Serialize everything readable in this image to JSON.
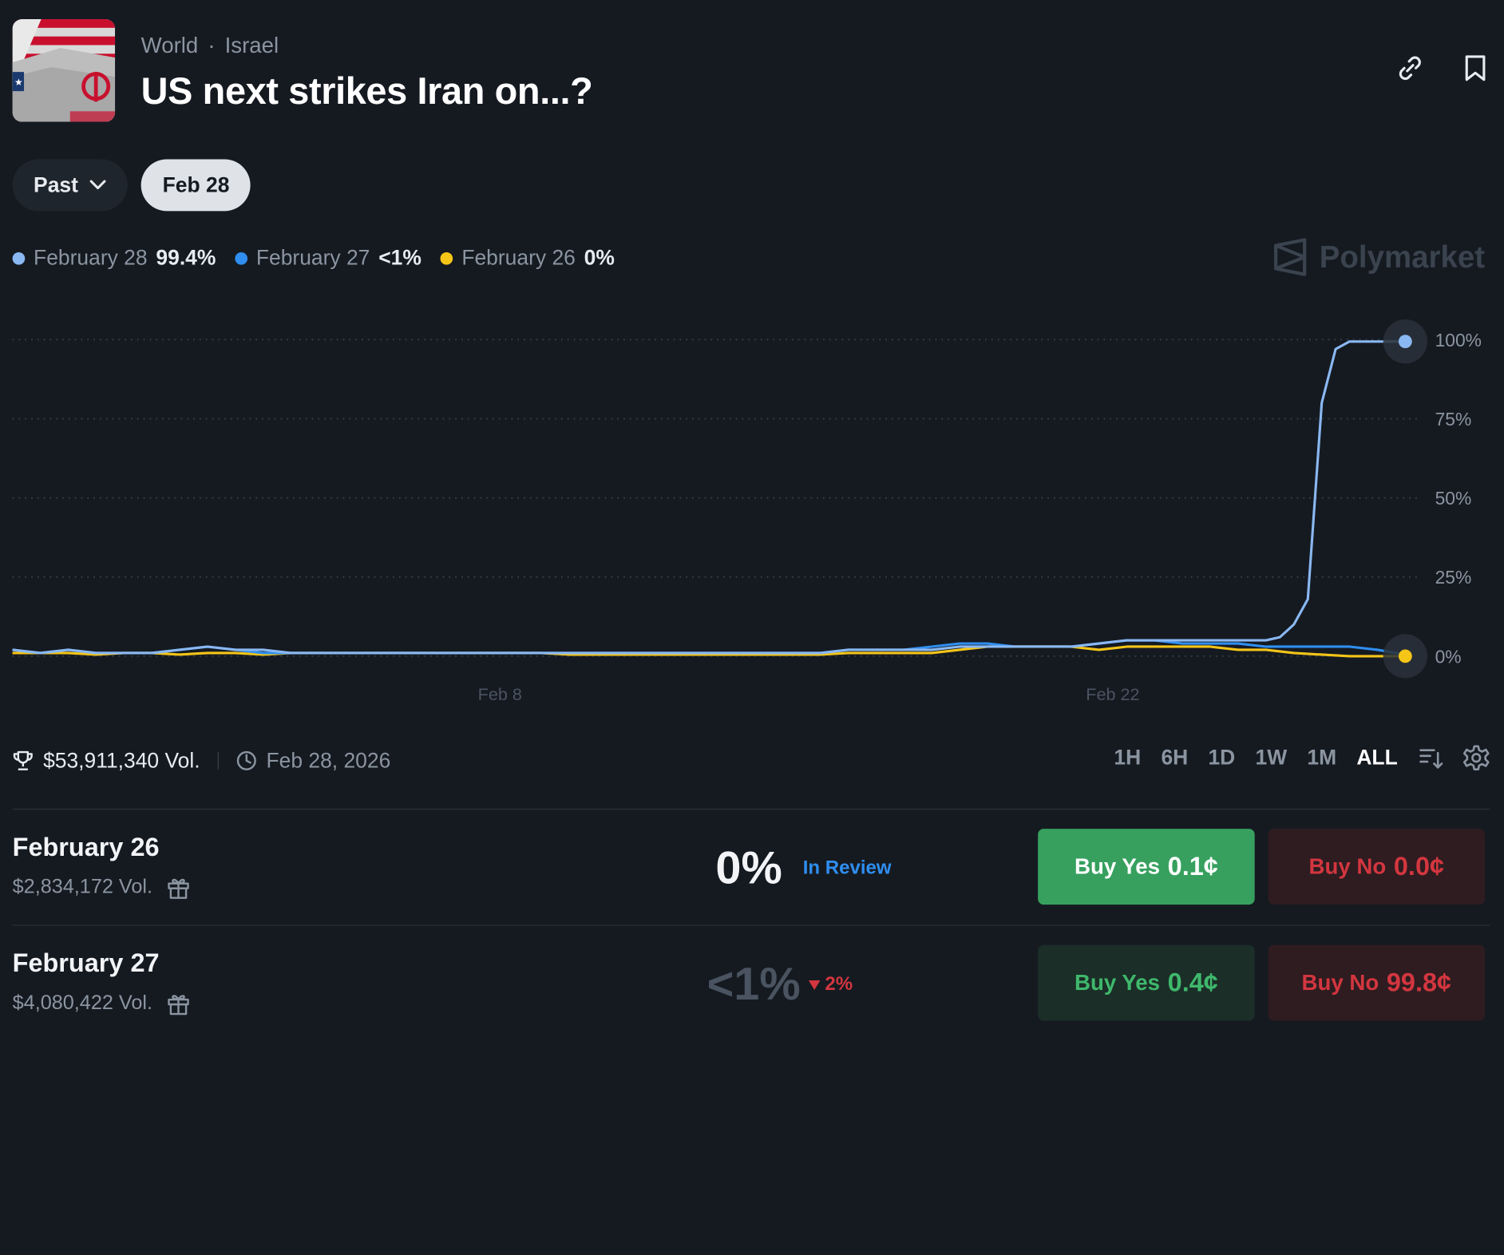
{
  "header": {
    "category": "World",
    "subcategory": "Israel",
    "title": "US next strikes Iran on...?"
  },
  "filters": {
    "past_label": "Past",
    "selected_label": "Feb 28"
  },
  "legend": [
    {
      "name": "February 28",
      "value": "99.4%",
      "color": "#8ab8f2"
    },
    {
      "name": "February 27",
      "value": "<1%",
      "color": "#2f8ef0"
    },
    {
      "name": "February 26",
      "value": "0%",
      "color": "#f5c518"
    }
  ],
  "brand": {
    "name": "Polymarket"
  },
  "chart_data": {
    "type": "line",
    "x_ticks": [
      "Feb 8",
      "Feb 22"
    ],
    "y_ticks": [
      "100%",
      "75%",
      "50%",
      "25%",
      "0%"
    ],
    "ylim": [
      0,
      100
    ],
    "grid": "horizontal-dotted",
    "series": [
      {
        "name": "February 28",
        "color": "#8ab8f2",
        "x": [
          0,
          2,
          4,
          6,
          8,
          10,
          12,
          14,
          16,
          18,
          20,
          22,
          24,
          26,
          28,
          30,
          32,
          34,
          36,
          38,
          40,
          42,
          44,
          46,
          48,
          50,
          52,
          54,
          56,
          58,
          60,
          62,
          64,
          66,
          68,
          70,
          72,
          74,
          76,
          78,
          80,
          82,
          84,
          86,
          88,
          89,
          90,
          91,
          92,
          93,
          94,
          95,
          96,
          97,
          98,
          99,
          100
        ],
        "values": [
          2,
          1,
          2,
          1,
          1,
          1,
          2,
          3,
          2,
          2,
          1,
          1,
          1,
          1,
          1,
          1,
          1,
          1,
          1,
          1,
          1,
          1,
          1,
          1,
          1,
          1,
          1,
          1,
          1,
          1,
          2,
          2,
          2,
          2,
          3,
          3,
          3,
          3,
          3,
          4,
          5,
          5,
          5,
          5,
          5,
          5,
          5,
          6,
          10,
          18,
          80,
          97,
          99.4,
          99.4,
          99.4,
          99.4,
          99.4
        ]
      },
      {
        "name": "February 27",
        "color": "#2f8ef0",
        "x": [
          0,
          2,
          4,
          6,
          8,
          10,
          12,
          14,
          16,
          18,
          20,
          22,
          24,
          26,
          28,
          30,
          32,
          34,
          36,
          38,
          40,
          42,
          44,
          46,
          48,
          50,
          52,
          54,
          56,
          58,
          60,
          62,
          64,
          66,
          68,
          70,
          72,
          74,
          76,
          78,
          80,
          82,
          84,
          86,
          88,
          90,
          92,
          94,
          96,
          98,
          100
        ],
        "values": [
          2,
          1,
          2,
          1,
          1,
          1,
          2,
          3,
          2,
          1,
          1,
          1,
          1,
          1,
          1,
          1,
          1,
          1,
          1,
          1,
          1,
          1,
          1,
          1,
          1,
          1,
          1,
          1,
          1,
          1,
          2,
          2,
          2,
          3,
          4,
          4,
          3,
          3,
          3,
          4,
          5,
          5,
          4,
          4,
          4,
          3,
          3,
          3,
          3,
          2,
          0.5
        ]
      },
      {
        "name": "February 26",
        "color": "#f5c518",
        "x": [
          0,
          2,
          4,
          6,
          8,
          10,
          12,
          14,
          16,
          18,
          20,
          22,
          24,
          26,
          28,
          30,
          32,
          34,
          36,
          38,
          40,
          42,
          44,
          46,
          48,
          50,
          52,
          54,
          56,
          58,
          60,
          62,
          64,
          66,
          68,
          70,
          72,
          74,
          76,
          78,
          80,
          82,
          84,
          86,
          88,
          90,
          92,
          94,
          96,
          98,
          100
        ],
        "values": [
          1,
          1,
          1,
          0.5,
          1,
          1,
          0.5,
          1,
          1,
          0.5,
          1,
          1,
          1,
          1,
          1,
          1,
          1,
          1,
          1,
          1,
          0.5,
          0.5,
          0.5,
          0.5,
          0.5,
          0.5,
          0.5,
          0.5,
          0.5,
          0.5,
          1,
          1,
          1,
          1,
          2,
          3,
          3,
          3,
          3,
          2,
          3,
          3,
          3,
          3,
          2,
          2,
          1,
          0.5,
          0,
          0,
          0
        ]
      }
    ]
  },
  "stats": {
    "volume": "$53,911,340 Vol.",
    "end_date": "Feb 28, 2026"
  },
  "ranges": [
    "1H",
    "6H",
    "1D",
    "1W",
    "1M",
    "ALL"
  ],
  "active_range": "ALL",
  "outcomes": [
    {
      "name": "February 26",
      "volume": "$2,834,172 Vol.",
      "percent": "0%",
      "tag": "In Review",
      "buy_yes_label": "Buy Yes",
      "buy_yes_price": "0.1¢",
      "buy_no_label": "Buy No",
      "buy_no_price": "0.0¢"
    },
    {
      "name": "February 27",
      "volume": "$4,080,422 Vol.",
      "percent": "<1%",
      "tag": "2%",
      "buy_yes_label": "Buy Yes",
      "buy_yes_price": "0.4¢",
      "buy_no_label": "Buy No",
      "buy_no_price": "99.8¢"
    }
  ]
}
